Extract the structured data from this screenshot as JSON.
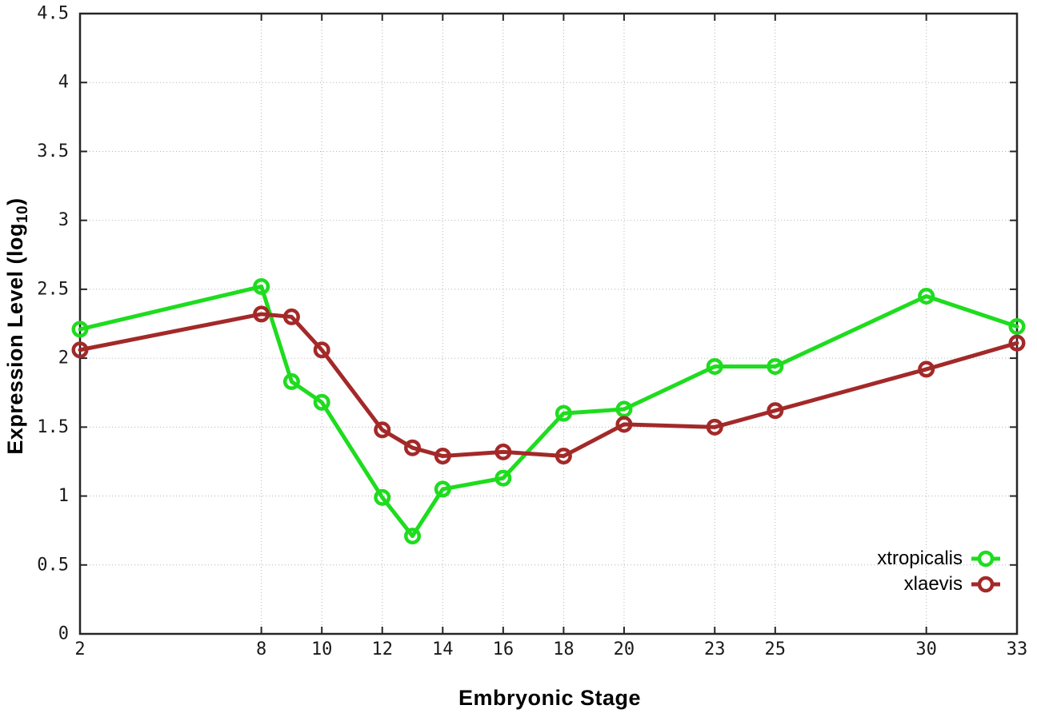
{
  "figure": {
    "background": "#ffffff",
    "border_color": "#262626",
    "grid_color": "#b3b3b3"
  },
  "chart_data": {
    "type": "line",
    "title": "",
    "xlabel": "Embryonic Stage",
    "ylabel": "Expression Level (log10)",
    "ylabel_parts": {
      "prefix": "Expression Level (log",
      "sub": "10",
      "suffix": ")"
    },
    "xlim": [
      2,
      33
    ],
    "ylim": [
      0,
      4.5
    ],
    "grid": true,
    "legend_position": "bottom-right",
    "x_ticks": [
      2,
      8,
      10,
      12,
      14,
      16,
      18,
      20,
      23,
      25,
      30,
      33
    ],
    "x_tick_labels": [
      "2",
      "8",
      "10",
      "12",
      "14",
      "16",
      "18",
      "20",
      "23",
      "25",
      "30",
      "33"
    ],
    "y_ticks": [
      0,
      0.5,
      1,
      1.5,
      2,
      2.5,
      3,
      3.5,
      4,
      4.5
    ],
    "y_tick_labels": [
      "0",
      "0.5",
      "1",
      "1.5",
      "2",
      "2.5",
      "3",
      "3.5",
      "4",
      "4.5"
    ],
    "x": [
      2,
      8,
      9,
      10,
      12,
      13,
      14,
      16,
      18,
      20,
      23,
      25,
      30,
      33
    ],
    "series": [
      {
        "name": "xtropicalis",
        "color": "#1edc1e",
        "values": [
          2.21,
          2.52,
          1.83,
          1.68,
          0.99,
          0.71,
          1.05,
          1.13,
          1.6,
          1.63,
          1.94,
          1.94,
          2.45,
          2.23
        ]
      },
      {
        "name": "xlaevis",
        "color": "#a32929",
        "values": [
          2.06,
          2.32,
          2.3,
          2.06,
          1.48,
          1.35,
          1.29,
          1.32,
          1.29,
          1.52,
          1.5,
          1.62,
          1.92,
          2.11
        ]
      }
    ]
  }
}
